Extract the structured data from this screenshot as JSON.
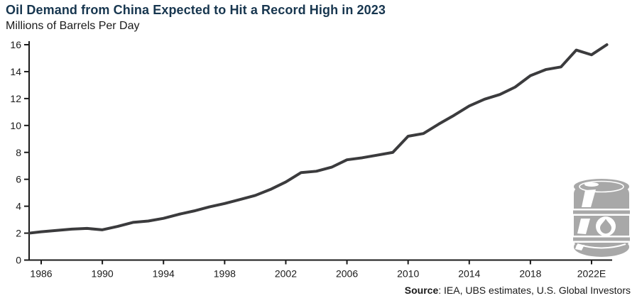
{
  "header": {
    "title": "Oil Demand from China Expected to Hit a Record High in 2023",
    "subtitle": "Millions of Barrels Per Day"
  },
  "footer": {
    "source_label": "Source",
    "source_text": ": IEA, UBS estimates, U.S. Global Investors"
  },
  "icons": {
    "oil_barrel": "oil-barrel-icon"
  },
  "colors": {
    "title_text": "#17364F",
    "body_text": "#1A1A1A",
    "axis": "#1A1A1A",
    "line": "#3B3B3D",
    "barrel": "#A8A8A8",
    "background": "#FFFFFF"
  },
  "chart_data": {
    "type": "line",
    "title": "Oil Demand from China Expected to Hit a Record High in 2023",
    "ylabel": "Millions of Barrels Per Day",
    "xlabel": "",
    "grid": false,
    "legend": "none",
    "ylim": [
      0,
      16
    ],
    "xlim": [
      1985,
      2023
    ],
    "y_ticks": [
      0,
      2,
      4,
      6,
      8,
      10,
      12,
      14,
      16
    ],
    "x_tick_positions": [
      1986,
      1990,
      1994,
      1998,
      2002,
      2006,
      2010,
      2014,
      2018,
      2022
    ],
    "x_tick_labels": [
      "1986",
      "1990",
      "1994",
      "1998",
      "2002",
      "2006",
      "2010",
      "2014",
      "2018",
      "2022E"
    ],
    "line_color": "#3B3B3D",
    "x": [
      1985,
      1986,
      1987,
      1988,
      1989,
      1990,
      1991,
      1992,
      1993,
      1994,
      1995,
      1996,
      1997,
      1998,
      1999,
      2000,
      2001,
      2002,
      2003,
      2004,
      2005,
      2006,
      2007,
      2008,
      2009,
      2010,
      2011,
      2012,
      2013,
      2014,
      2015,
      2016,
      2017,
      2018,
      2019,
      2020,
      2021,
      2022,
      2023
    ],
    "values": [
      2.0,
      2.1,
      2.2,
      2.3,
      2.35,
      2.25,
      2.5,
      2.8,
      2.9,
      3.1,
      3.4,
      3.65,
      3.95,
      4.2,
      4.5,
      4.8,
      5.25,
      5.8,
      6.5,
      6.6,
      6.9,
      7.45,
      7.6,
      7.8,
      8.0,
      9.2,
      9.4,
      10.1,
      10.75,
      11.45,
      11.95,
      12.3,
      12.85,
      13.7,
      14.15,
      14.35,
      15.6,
      15.25,
      16.0
    ]
  }
}
